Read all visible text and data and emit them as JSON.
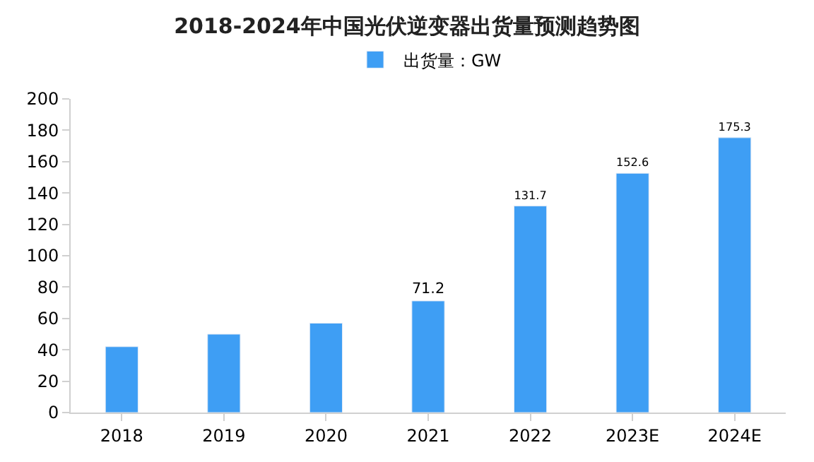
{
  "chart_data": {
    "type": "bar",
    "title": "2018-2024年中国光伏逆变器出货量预测趋势图",
    "categories": [
      "2018",
      "2019",
      "2020",
      "2021",
      "2022",
      "2023E",
      "2024E"
    ],
    "series": [
      {
        "name": "出货量：GW",
        "color": "#3e9ef4",
        "values": [
          42,
          50,
          57,
          71.2,
          131.7,
          152.6,
          175.3
        ],
        "value_labels": [
          null,
          null,
          null,
          "71.2",
          "131.7",
          "152.6",
          "175.3"
        ]
      }
    ],
    "ylim": [
      0,
      200
    ],
    "yticks": [
      0,
      20,
      40,
      60,
      80,
      100,
      120,
      140,
      160,
      180,
      200
    ],
    "legend": "top"
  }
}
